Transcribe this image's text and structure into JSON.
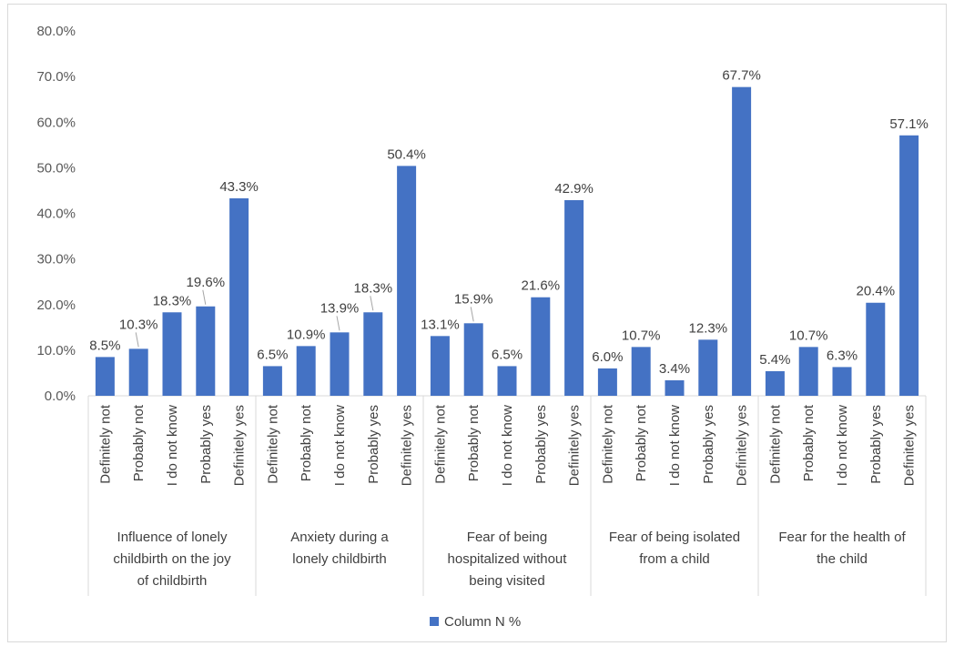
{
  "chart_data": {
    "type": "bar",
    "ylim": [
      0,
      80
    ],
    "y_ticks": [
      "0.0%",
      "10.0%",
      "20.0%",
      "30.0%",
      "40.0%",
      "50.0%",
      "60.0%",
      "70.0%",
      "80.0%"
    ],
    "categories": [
      "Definitely not",
      "Probably not",
      "I do not know",
      "Probably yes",
      "Definitely yes"
    ],
    "groups": [
      {
        "label": "Influence of lonely childbirth on the joy of childbirth",
        "values": [
          8.5,
          10.3,
          18.3,
          19.6,
          43.3
        ],
        "labels": [
          "8.5%",
          "10.3%",
          "18.3%",
          "19.6%",
          "43.3%"
        ]
      },
      {
        "label": "Anxiety during a lonely childbirth",
        "values": [
          6.5,
          10.9,
          13.9,
          18.3,
          50.4
        ],
        "labels": [
          "6.5%",
          "10.9%",
          "13.9%",
          "18.3%",
          "50.4%"
        ]
      },
      {
        "label": "Fear of being hospitalized without being visited",
        "values": [
          13.1,
          15.9,
          6.5,
          21.6,
          42.9
        ],
        "labels": [
          "13.1%",
          "15.9%",
          "6.5%",
          "21.6%",
          "42.9%"
        ]
      },
      {
        "label": "Fear of being isolated from a child",
        "values": [
          6.0,
          10.7,
          3.4,
          12.3,
          67.7
        ],
        "labels": [
          "6.0%",
          "10.7%",
          "3.4%",
          "12.3%",
          "67.7%"
        ]
      },
      {
        "label": "Fear for the health of the child",
        "values": [
          5.4,
          10.7,
          6.3,
          20.4,
          57.1
        ],
        "labels": [
          "5.4%",
          "10.7%",
          "6.3%",
          "20.4%",
          "57.1%"
        ]
      }
    ],
    "series": [
      {
        "name": "Column N %",
        "color": "#4472c4"
      }
    ],
    "legend_position": "bottom",
    "grid": false
  }
}
